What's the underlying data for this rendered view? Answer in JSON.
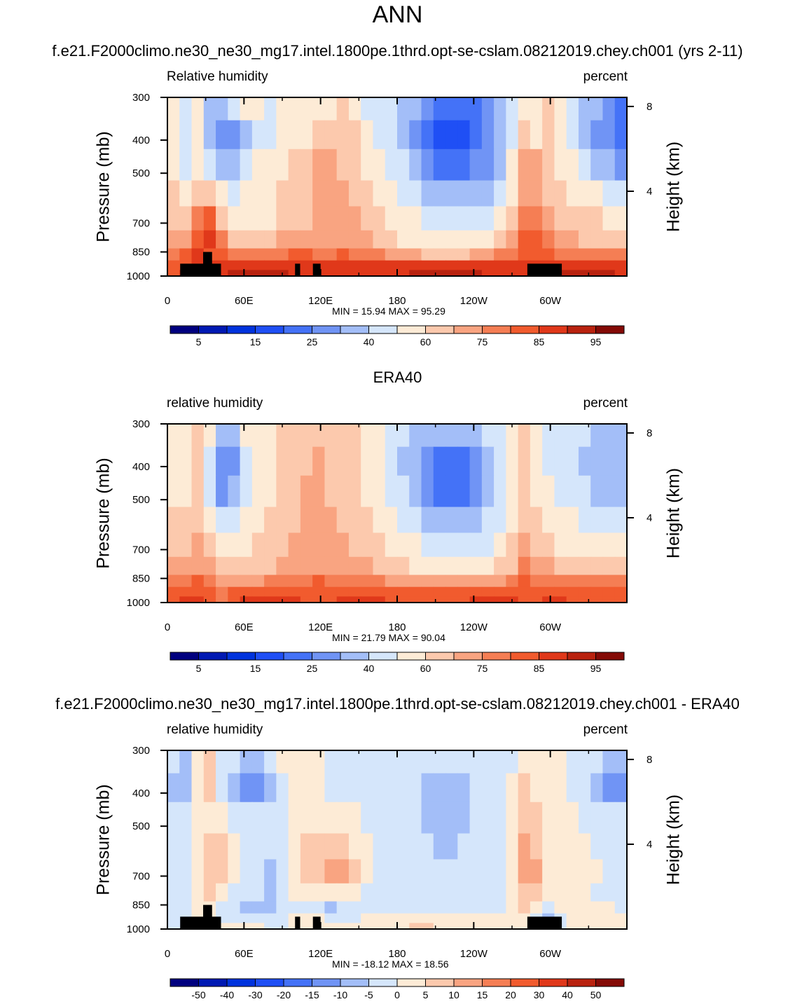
{
  "main_title": "ANN",
  "colors": {
    "rh_scale": [
      "#00007f",
      "#0019b3",
      "#0033dd",
      "#1f4ff5",
      "#4472f7",
      "#7094f5",
      "#a3bef8",
      "#d5e6fb",
      "#fdebd6",
      "#fcc9ad",
      "#f9a481",
      "#f57e54",
      "#f15b2e",
      "#e0381a",
      "#b9220f",
      "#840a06"
    ],
    "diff_scale": [
      "#00007f",
      "#0019b3",
      "#0033dd",
      "#1f4ff5",
      "#4472f7",
      "#7094f5",
      "#a3bef8",
      "#d5e6fb",
      "#fdebd6",
      "#fcc9ad",
      "#f9a481",
      "#f57e54",
      "#f15b2e",
      "#e0381a",
      "#b9220f",
      "#840a06"
    ],
    "land_mask": "#000000"
  },
  "chart_data": [
    {
      "type": "heatmap",
      "title": "f.e21.F2000climo.ne30_ne30_mg17.intel.1800pe.1thrd.opt-se-cslam.08212019.chey.ch001 (yrs 2-11)",
      "left_string": "Relative humidity",
      "right_string": "percent",
      "ylabel": "Pressure (mb)",
      "ylabel_right": "Height (km)",
      "x_ticks": [
        "0",
        "60E",
        "120E",
        "180",
        "120W",
        "60W"
      ],
      "y_ticks": [
        "300",
        "400",
        "500",
        "700",
        "850",
        "1000"
      ],
      "y_ticks_right": [
        "8",
        "4"
      ],
      "min_max": "MIN =  15.94  MAX =  95.29",
      "min": 15.94,
      "max": 95.29,
      "colorbar_labels": [
        "5",
        "15",
        "25",
        "40",
        "60",
        "75",
        "85",
        "95"
      ],
      "grid": [
        [
          8,
          7,
          8,
          6,
          6,
          7,
          8,
          8,
          7,
          8,
          8,
          8,
          8,
          8,
          9,
          8,
          7,
          7,
          7,
          6,
          6,
          5,
          4,
          4,
          4,
          4,
          5,
          6,
          7,
          8,
          8,
          9,
          8,
          7,
          6,
          6,
          5,
          4
        ],
        [
          8,
          7,
          8,
          6,
          5,
          5,
          6,
          7,
          7,
          8,
          8,
          8,
          9,
          9,
          9,
          9,
          8,
          7,
          7,
          6,
          5,
          4,
          3,
          3,
          3,
          4,
          5,
          6,
          7,
          9,
          8,
          9,
          8,
          7,
          6,
          5,
          5,
          4
        ],
        [
          8,
          7,
          8,
          7,
          6,
          6,
          7,
          8,
          8,
          8,
          9,
          9,
          10,
          10,
          9,
          9,
          8,
          8,
          7,
          7,
          6,
          5,
          4,
          4,
          4,
          5,
          5,
          6,
          8,
          10,
          10,
          9,
          8,
          8,
          7,
          6,
          6,
          5
        ],
        [
          9,
          8,
          9,
          9,
          8,
          7,
          8,
          8,
          8,
          9,
          9,
          9,
          10,
          10,
          10,
          9,
          9,
          8,
          8,
          7,
          7,
          6,
          6,
          6,
          6,
          6,
          6,
          7,
          8,
          10,
          10,
          9,
          9,
          8,
          8,
          8,
          7,
          7
        ],
        [
          9,
          9,
          11,
          12,
          9,
          8,
          8,
          8,
          8,
          9,
          9,
          9,
          10,
          10,
          10,
          10,
          9,
          9,
          8,
          8,
          8,
          7,
          7,
          7,
          7,
          7,
          7,
          8,
          9,
          11,
          11,
          10,
          9,
          9,
          9,
          9,
          8,
          8
        ],
        [
          10,
          10,
          12,
          13,
          11,
          9,
          9,
          9,
          9,
          10,
          10,
          10,
          10,
          10,
          10,
          10,
          10,
          9,
          9,
          8,
          8,
          8,
          8,
          8,
          8,
          8,
          8,
          9,
          10,
          12,
          12,
          11,
          10,
          10,
          9,
          9,
          9,
          9
        ],
        [
          11,
          12,
          13,
          12,
          12,
          11,
          11,
          11,
          11,
          11,
          12,
          12,
          11,
          11,
          12,
          11,
          11,
          11,
          10,
          10,
          10,
          9,
          9,
          9,
          9,
          10,
          10,
          11,
          11,
          12,
          12,
          12,
          11,
          11,
          11,
          11,
          11,
          11
        ],
        [
          12,
          12,
          13,
          13,
          13,
          13,
          13,
          13,
          13,
          13,
          13,
          13,
          13,
          13,
          13,
          13,
          13,
          13,
          13,
          13,
          13,
          13,
          13,
          13,
          13,
          13,
          13,
          13,
          13,
          13,
          13,
          13,
          13,
          13,
          13,
          13,
          13,
          13
        ],
        [
          12,
          13,
          13,
          13,
          13,
          14,
          14,
          14,
          14,
          14,
          13,
          13,
          13,
          13,
          13,
          13,
          13,
          13,
          13,
          13,
          14,
          14,
          14,
          14,
          14,
          14,
          13,
          13,
          13,
          13,
          13,
          13,
          14,
          14,
          14,
          14,
          14,
          13
        ]
      ],
      "land": [
        {
          "lon_start": 10,
          "lon_end": 42,
          "p_top": 920
        },
        {
          "lon_start": 28,
          "lon_end": 35,
          "p_top": 850
        },
        {
          "lon_start": 100,
          "lon_end": 104,
          "p_top": 920
        },
        {
          "lon_start": 114,
          "lon_end": 120,
          "p_top": 920
        },
        {
          "lon_start": 282,
          "lon_end": 309,
          "p_top": 920
        }
      ]
    },
    {
      "type": "heatmap",
      "title": "ERA40",
      "left_string": "relative humidity",
      "right_string": "percent",
      "ylabel": "Pressure (mb)",
      "ylabel_right": "Height (km)",
      "x_ticks": [
        "0",
        "60E",
        "120E",
        "180",
        "120W",
        "60W"
      ],
      "y_ticks": [
        "300",
        "400",
        "500",
        "700",
        "850",
        "1000"
      ],
      "y_ticks_right": [
        "8",
        "4"
      ],
      "min_max": "MIN =  21.79  MAX =  90.04",
      "min": 21.79,
      "max": 90.04,
      "colorbar_labels": [
        "5",
        "15",
        "25",
        "40",
        "60",
        "75",
        "85",
        "95"
      ],
      "grid": [
        [
          8,
          8,
          9,
          8,
          6,
          6,
          8,
          8,
          8,
          9,
          9,
          9,
          9,
          9,
          9,
          9,
          8,
          8,
          7,
          7,
          6,
          6,
          6,
          6,
          6,
          6,
          7,
          7,
          8,
          9,
          8,
          7,
          7,
          7,
          7,
          6,
          6,
          6
        ],
        [
          8,
          8,
          9,
          7,
          5,
          5,
          7,
          8,
          8,
          9,
          9,
          9,
          10,
          9,
          9,
          9,
          8,
          8,
          7,
          6,
          6,
          5,
          4,
          4,
          4,
          5,
          6,
          7,
          8,
          9,
          8,
          7,
          7,
          7,
          6,
          6,
          6,
          6
        ],
        [
          8,
          8,
          9,
          7,
          5,
          6,
          7,
          8,
          8,
          9,
          9,
          10,
          10,
          9,
          9,
          9,
          8,
          8,
          7,
          7,
          6,
          5,
          4,
          4,
          4,
          5,
          6,
          7,
          8,
          9,
          8,
          8,
          7,
          7,
          7,
          6,
          6,
          6
        ],
        [
          9,
          9,
          9,
          8,
          7,
          7,
          8,
          8,
          9,
          9,
          9,
          10,
          10,
          10,
          9,
          9,
          9,
          8,
          8,
          7,
          7,
          6,
          6,
          6,
          6,
          6,
          7,
          7,
          8,
          9,
          9,
          8,
          8,
          8,
          7,
          7,
          7,
          7
        ],
        [
          9,
          9,
          10,
          9,
          8,
          8,
          8,
          9,
          9,
          9,
          10,
          10,
          10,
          10,
          10,
          9,
          9,
          9,
          8,
          8,
          8,
          7,
          7,
          7,
          7,
          7,
          7,
          8,
          9,
          10,
          9,
          9,
          8,
          8,
          8,
          8,
          8,
          8
        ],
        [
          10,
          10,
          10,
          10,
          9,
          9,
          9,
          9,
          9,
          10,
          10,
          10,
          10,
          10,
          10,
          10,
          10,
          9,
          9,
          9,
          8,
          8,
          8,
          8,
          8,
          8,
          8,
          9,
          9,
          11,
          10,
          10,
          9,
          9,
          9,
          9,
          9,
          9
        ],
        [
          11,
          11,
          12,
          11,
          10,
          10,
          10,
          10,
          11,
          11,
          11,
          11,
          12,
          11,
          11,
          11,
          11,
          11,
          10,
          10,
          10,
          10,
          10,
          10,
          10,
          10,
          10,
          10,
          11,
          12,
          11,
          11,
          11,
          11,
          11,
          11,
          11,
          11
        ],
        [
          12,
          12,
          12,
          12,
          11,
          12,
          12,
          12,
          12,
          12,
          12,
          12,
          12,
          12,
          12,
          12,
          12,
          12,
          12,
          12,
          12,
          12,
          12,
          12,
          12,
          12,
          12,
          12,
          12,
          12,
          12,
          12,
          12,
          12,
          12,
          12,
          12,
          12
        ],
        [
          12,
          13,
          13,
          12,
          11,
          12,
          13,
          13,
          13,
          13,
          13,
          12,
          12,
          12,
          13,
          13,
          13,
          13,
          12,
          12,
          12,
          12,
          12,
          12,
          12,
          13,
          13,
          13,
          13,
          12,
          12,
          13,
          13,
          12,
          12,
          12,
          12,
          12
        ]
      ],
      "land": []
    },
    {
      "type": "heatmap",
      "title": "f.e21.F2000climo.ne30_ne30_mg17.intel.1800pe.1thrd.opt-se-cslam.08212019.chey.ch001 - ERA40",
      "left_string": "relative humidity",
      "right_string": "percent",
      "ylabel": "Pressure (mb)",
      "ylabel_right": "Height (km)",
      "x_ticks": [
        "0",
        "60E",
        "120E",
        "180",
        "120W",
        "60W"
      ],
      "y_ticks": [
        "300",
        "400",
        "500",
        "700",
        "850",
        "1000"
      ],
      "y_ticks_right": [
        "8",
        "4"
      ],
      "min_max": "MIN = -18.12  MAX =  18.56",
      "min": -18.12,
      "max": 18.56,
      "colorbar_labels": [
        "-50",
        "-40",
        "-30",
        "-20",
        "-15",
        "-10",
        "-5",
        "0",
        "5",
        "10",
        "15",
        "20",
        "30",
        "40",
        "50"
      ],
      "grid": [
        [
          7,
          6,
          8,
          9,
          7,
          7,
          6,
          6,
          7,
          8,
          8,
          8,
          8,
          7,
          7,
          7,
          7,
          7,
          7,
          7,
          7,
          7,
          7,
          7,
          7,
          7,
          7,
          7,
          7,
          8,
          8,
          8,
          8,
          7,
          7,
          7,
          6,
          6
        ],
        [
          6,
          6,
          8,
          9,
          7,
          6,
          5,
          5,
          6,
          7,
          8,
          8,
          8,
          7,
          7,
          7,
          7,
          7,
          7,
          7,
          7,
          6,
          6,
          6,
          6,
          7,
          7,
          7,
          8,
          9,
          8,
          8,
          8,
          7,
          7,
          6,
          5,
          5
        ],
        [
          7,
          7,
          8,
          8,
          8,
          7,
          7,
          7,
          7,
          7,
          8,
          8,
          8,
          8,
          8,
          8,
          7,
          7,
          7,
          7,
          7,
          6,
          6,
          6,
          6,
          7,
          7,
          7,
          8,
          9,
          9,
          8,
          8,
          8,
          7,
          7,
          7,
          7
        ],
        [
          7,
          7,
          8,
          9,
          9,
          8,
          7,
          7,
          7,
          7,
          8,
          9,
          9,
          9,
          9,
          8,
          8,
          7,
          7,
          7,
          7,
          7,
          6,
          6,
          7,
          7,
          7,
          7,
          8,
          10,
          9,
          8,
          8,
          8,
          8,
          7,
          7,
          7
        ],
        [
          7,
          7,
          8,
          9,
          9,
          8,
          7,
          7,
          6,
          7,
          8,
          9,
          9,
          10,
          10,
          9,
          8,
          7,
          7,
          7,
          7,
          7,
          7,
          7,
          7,
          7,
          7,
          7,
          8,
          10,
          10,
          8,
          8,
          8,
          8,
          8,
          7,
          7
        ],
        [
          7,
          7,
          8,
          9,
          8,
          7,
          7,
          7,
          6,
          7,
          8,
          8,
          8,
          8,
          8,
          8,
          7,
          7,
          7,
          7,
          7,
          7,
          7,
          7,
          7,
          7,
          7,
          7,
          8,
          9,
          9,
          8,
          8,
          8,
          8,
          7,
          7,
          7
        ],
        [
          7,
          7,
          8,
          8,
          7,
          7,
          6,
          6,
          6,
          7,
          7,
          7,
          7,
          6,
          7,
          7,
          7,
          7,
          7,
          7,
          7,
          7,
          7,
          7,
          7,
          7,
          7,
          7,
          8,
          9,
          8,
          7,
          8,
          8,
          8,
          8,
          8,
          7
        ],
        [
          7,
          7,
          8,
          8,
          7,
          7,
          7,
          7,
          7,
          7,
          8,
          8,
          8,
          7,
          7,
          7,
          8,
          8,
          8,
          8,
          8,
          8,
          8,
          8,
          8,
          8,
          8,
          8,
          8,
          8,
          7,
          6,
          7,
          8,
          8,
          8,
          8,
          8
        ],
        [
          7,
          7,
          8,
          8,
          8,
          8,
          8,
          8,
          7,
          7,
          8,
          8,
          8,
          8,
          8,
          8,
          8,
          8,
          8,
          8,
          9,
          9,
          8,
          8,
          8,
          8,
          8,
          8,
          8,
          8,
          7,
          7,
          7,
          8,
          8,
          8,
          8,
          8
        ]
      ],
      "land": [
        {
          "lon_start": 10,
          "lon_end": 42,
          "p_top": 920
        },
        {
          "lon_start": 28,
          "lon_end": 35,
          "p_top": 850
        },
        {
          "lon_start": 100,
          "lon_end": 104,
          "p_top": 920
        },
        {
          "lon_start": 114,
          "lon_end": 120,
          "p_top": 920
        },
        {
          "lon_start": 282,
          "lon_end": 309,
          "p_top": 920
        }
      ]
    }
  ]
}
